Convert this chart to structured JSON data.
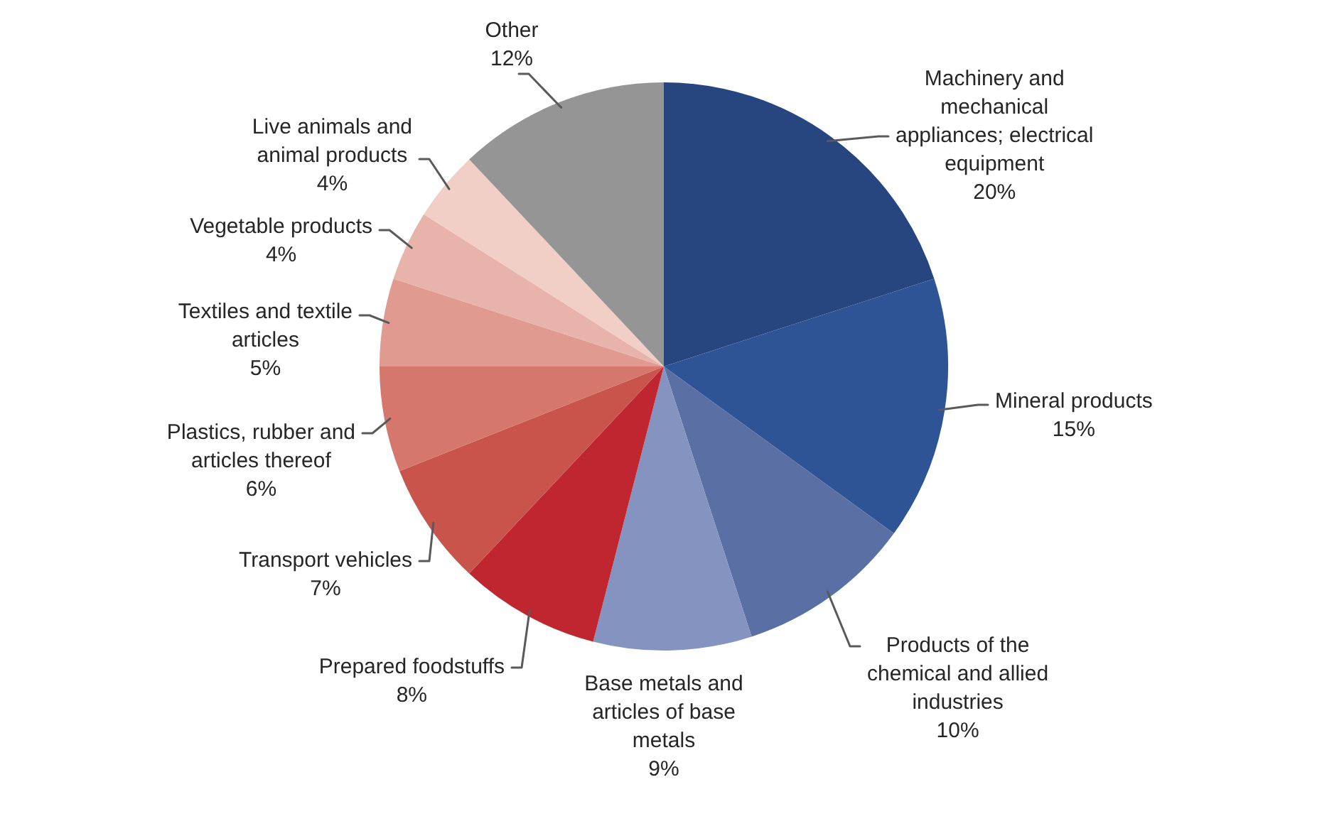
{
  "chart_data": {
    "type": "pie",
    "categories": [
      "Machinery and mechanical appliances; electrical equipment",
      "Mineral products",
      "Products of the chemical and allied industries",
      "Base metals and articles of base metals",
      "Prepared foodstuffs",
      "Transport vehicles",
      "Plastics, rubber and articles thereof",
      "Textiles and textile articles",
      "Vegetable products",
      "Live animals and animal products",
      "Other"
    ],
    "values": [
      20,
      15,
      10,
      9,
      8,
      7,
      6,
      5,
      4,
      4,
      12
    ],
    "value_labels": [
      "20%",
      "15%",
      "10%",
      "9%",
      "8%",
      "7%",
      "6%",
      "5%",
      "4%",
      "4%",
      "12%"
    ],
    "colors": [
      "#27457f",
      "#2f5496",
      "#5a6fa3",
      "#8593c0",
      "#c0262f",
      "#c9544c",
      "#d5776c",
      "#e09a90",
      "#e8b3aa",
      "#f2cfc6",
      "#959595"
    ],
    "legend": false
  }
}
